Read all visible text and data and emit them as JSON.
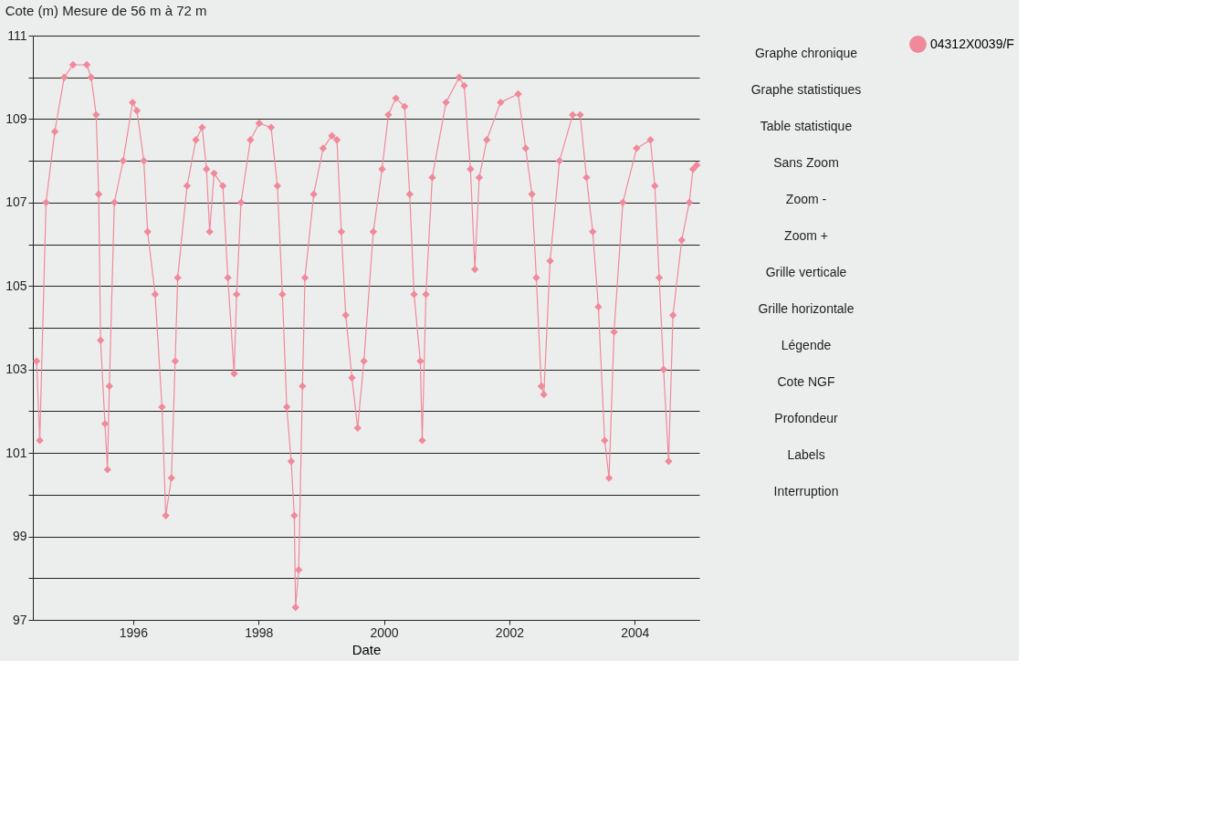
{
  "chart_data": {
    "type": "line",
    "title": "Cote (m) Mesure de 56 m à 72 m",
    "xlabel": "Date",
    "x": [
      1994.46,
      1994.51,
      1994.61,
      1994.75,
      1994.9,
      1995.04,
      1995.26,
      1995.33,
      1995.41,
      1995.45,
      1995.48,
      1995.55,
      1995.59,
      1995.62,
      1995.7,
      1995.84,
      1995.99,
      1996.06,
      1996.17,
      1996.23,
      1996.35,
      1996.46,
      1996.52,
      1996.61,
      1996.67,
      1996.71,
      1996.86,
      1997.0,
      1997.1,
      1997.17,
      1997.22,
      1997.29,
      1997.43,
      1997.51,
      1997.61,
      1997.65,
      1997.72,
      1997.87,
      1998.01,
      1998.2,
      1998.3,
      1998.38,
      1998.45,
      1998.52,
      1998.57,
      1998.59,
      1998.64,
      1998.7,
      1998.74,
      1998.88,
      1999.03,
      1999.17,
      1999.25,
      1999.32,
      1999.39,
      1999.49,
      1999.58,
      1999.68,
      1999.83,
      1999.97,
      2000.07,
      2000.19,
      2000.33,
      2000.41,
      2000.48,
      2000.58,
      2000.61,
      2000.67,
      2000.77,
      2000.99,
      2001.2,
      2001.28,
      2001.38,
      2001.45,
      2001.52,
      2001.64,
      2001.86,
      2002.14,
      2002.26,
      2002.36,
      2002.43,
      2002.51,
      2002.55,
      2002.65,
      2002.8,
      2003.01,
      2003.13,
      2003.23,
      2003.33,
      2003.42,
      2003.52,
      2003.59,
      2003.67,
      2003.81,
      2004.03,
      2004.25,
      2004.32,
      2004.39,
      2004.46,
      2004.54,
      2004.61,
      2004.75,
      2004.87,
      2004.93,
      2004.99
    ],
    "series": [
      {
        "name": "04312X0039/F",
        "color": "#f08a9a",
        "values": [
          103.2,
          101.3,
          107.0,
          108.7,
          110.0,
          110.3,
          110.3,
          110.0,
          109.1,
          107.2,
          103.7,
          101.7,
          100.6,
          102.6,
          107.0,
          108.0,
          109.4,
          109.2,
          108.0,
          106.3,
          104.8,
          102.1,
          99.5,
          100.4,
          103.2,
          105.2,
          107.4,
          108.5,
          108.8,
          107.8,
          106.3,
          107.7,
          107.4,
          105.2,
          102.9,
          104.8,
          107.0,
          108.5,
          108.9,
          108.8,
          107.4,
          104.8,
          102.1,
          100.8,
          99.5,
          97.3,
          98.2,
          102.6,
          105.2,
          107.2,
          108.3,
          108.6,
          108.5,
          106.3,
          104.3,
          102.8,
          101.6,
          103.2,
          106.3,
          107.8,
          109.1,
          109.5,
          109.3,
          107.2,
          104.8,
          103.2,
          101.3,
          104.8,
          107.6,
          109.4,
          110.0,
          109.8,
          107.8,
          105.4,
          107.6,
          108.5,
          109.4,
          109.6,
          108.3,
          107.2,
          105.2,
          102.6,
          102.4,
          105.6,
          108.0,
          109.1,
          109.1,
          107.6,
          106.3,
          104.5,
          101.3,
          100.4,
          103.9,
          107.0,
          108.3,
          108.5,
          107.4,
          105.2,
          103.0,
          100.8,
          104.3,
          106.1,
          107.0,
          107.8,
          107.9
        ]
      }
    ],
    "xlim": [
      1994.4,
      2005.03
    ],
    "xticks": [
      1996,
      1998,
      2000,
      2002,
      2004
    ],
    "ylim": [
      97,
      111
    ],
    "yticks": [
      97,
      {
        "value": 98,
        "label": null
      },
      99,
      {
        "value": 100,
        "label": null
      },
      101,
      {
        "value": 102,
        "label": null
      },
      103,
      {
        "value": 104,
        "label": null
      },
      105,
      {
        "value": 106,
        "label": null
      },
      107,
      {
        "value": 108,
        "label": null
      },
      109,
      {
        "value": 110,
        "label": null
      },
      111
    ],
    "grid": "y",
    "legend": "right",
    "marker": "diamond",
    "line_style": "solid",
    "annotations": [
      "Graphe chronique",
      "Graphe statistiques",
      "Table statistique",
      "Sans Zoom",
      "Zoom -",
      "Zoom +",
      "Grille verticale",
      "Grille horizontale",
      "Légende",
      "Cote NGF",
      "Profondeur",
      "Labels",
      "Interruption"
    ]
  }
}
